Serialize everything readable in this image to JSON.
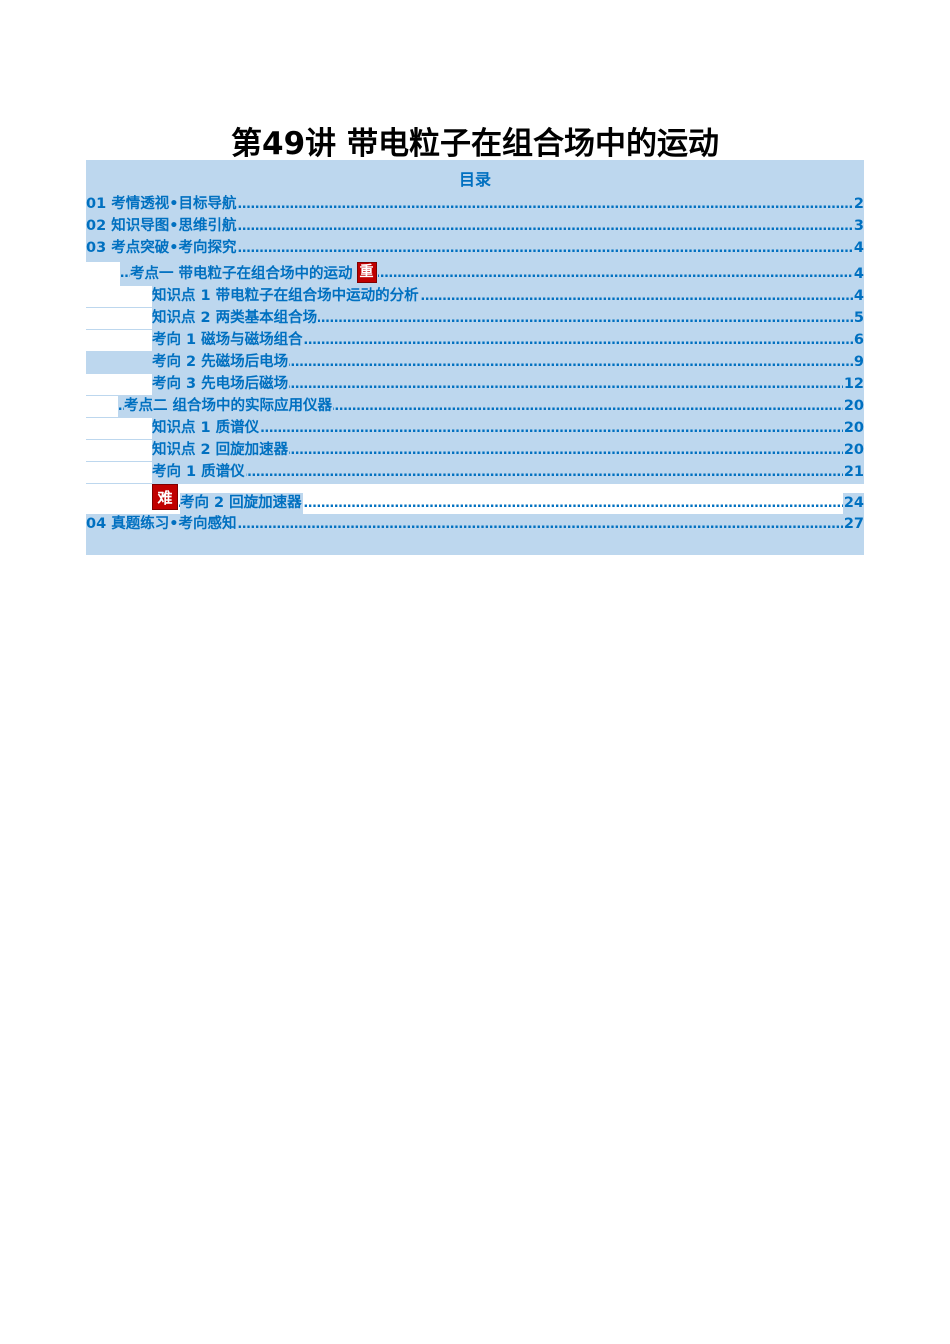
{
  "title": "第49讲 带电粒子在组合场中的运动",
  "toc": {
    "heading": "目录",
    "leader": "……………………………………………………………………………………………………………………………………………………………………………………………………………………",
    "entries": [
      {
        "label": "01 考情透视•目标导航",
        "page": "2"
      },
      {
        "label": "02 知识导图•思维引航",
        "page": "3"
      },
      {
        "label": "03 考点突破•考向探究",
        "page": "4"
      },
      {
        "label": "考点一 带电粒子在组合场中的运动",
        "badge": "重",
        "page": "4"
      },
      {
        "label": "知识点 1 带电粒子在组合场中运动的分析",
        "page": "4"
      },
      {
        "label": "知识点 2 两类基本组合场",
        "page": "5"
      },
      {
        "label": "考向 1 磁场与磁场组合",
        "page": "6"
      },
      {
        "label": "考向 2 先磁场后电场",
        "page": "9"
      },
      {
        "label": "考向 3 先电场后磁场",
        "page": "12"
      },
      {
        "label": "考点二 组合场中的实际应用仪器",
        "page": "20"
      },
      {
        "label": "知识点 1 质谱仪",
        "page": "20"
      },
      {
        "label": "知识点 2 回旋加速器",
        "page": "20"
      },
      {
        "label": "考向 1 质谱仪",
        "page": "21"
      },
      {
        "label": "考向 2 回旋加速器",
        "badge": "难",
        "page": "24"
      },
      {
        "label": "04 真题练习•考向感知",
        "page": "27"
      }
    ]
  },
  "colors": {
    "band": "#bdd7ee",
    "text": "#0070c0",
    "badge": "#c00000"
  }
}
